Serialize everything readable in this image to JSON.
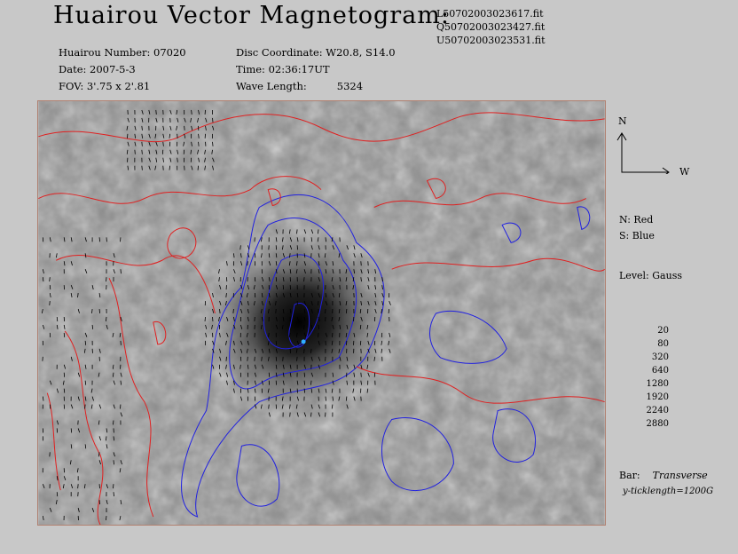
{
  "header": {
    "title": "Huairou Vector Magnetogram:",
    "files": [
      "L50702003023617.fit",
      "Q50702003023427.fit",
      "U50702003023531.fit"
    ],
    "number": "Huairou Number: 07020",
    "date": "Date: 2007-5-3",
    "fov": "FOV:  3'.75 x 2'.81",
    "disc": "Disc Coordinate:  W20.8, S14.0",
    "time": "Time: 02:36:17UT",
    "wave_label": "Wave Length:",
    "wave_value": "5324"
  },
  "legend": {
    "north": "N",
    "west": "W",
    "n_color": "N: Red",
    "s_color": "S: Blue",
    "level": "Level: Gauss",
    "levels": [
      "20",
      "80",
      "320",
      "640",
      "1280",
      "1920",
      "2240",
      "2880"
    ],
    "bar_label": "Bar:",
    "bar_value": "Transverse",
    "tick": "y-ticklength=1200G"
  },
  "colors": {
    "north": "#e02020",
    "south": "#2020e0",
    "background": "#c8c8c8"
  }
}
